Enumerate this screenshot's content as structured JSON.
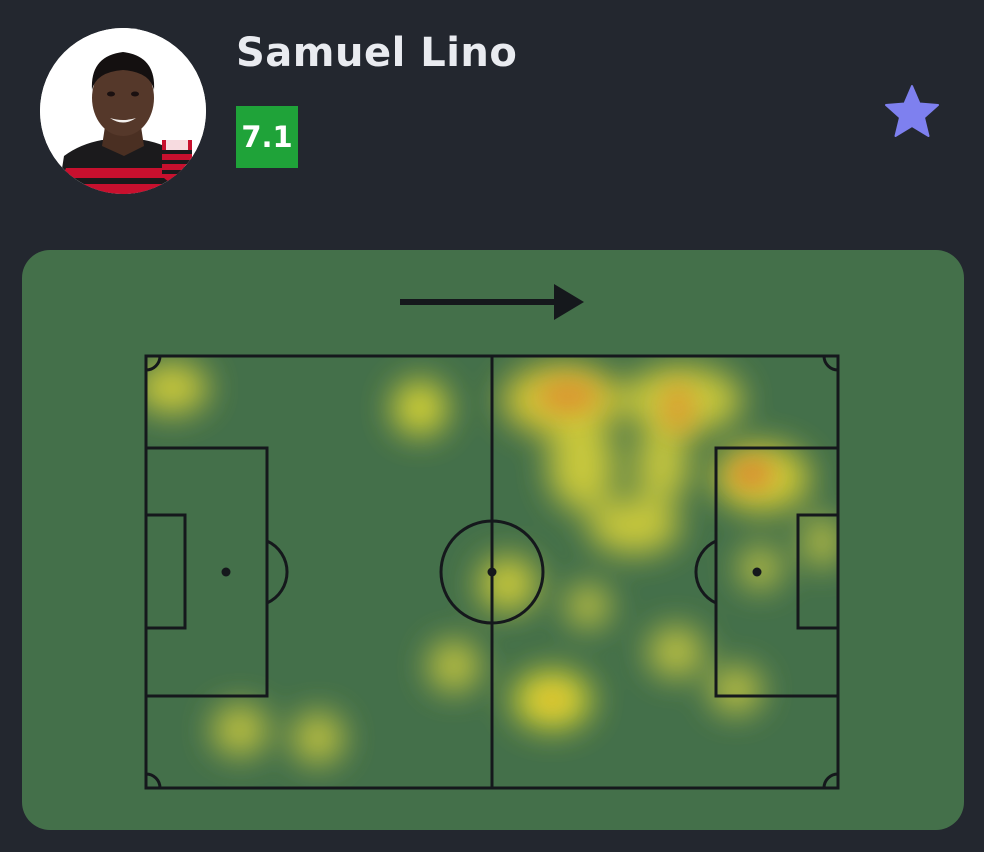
{
  "player": {
    "name": "Samuel Lino",
    "rating": "7.1",
    "rating_color": "#1fa339"
  },
  "icons": {
    "favorite": "star-icon",
    "direction": "arrow-right-icon"
  },
  "colors": {
    "background": "#23272f",
    "pitch": "#44704a",
    "lines": "#15181c",
    "star": "#7e80ef"
  }
}
